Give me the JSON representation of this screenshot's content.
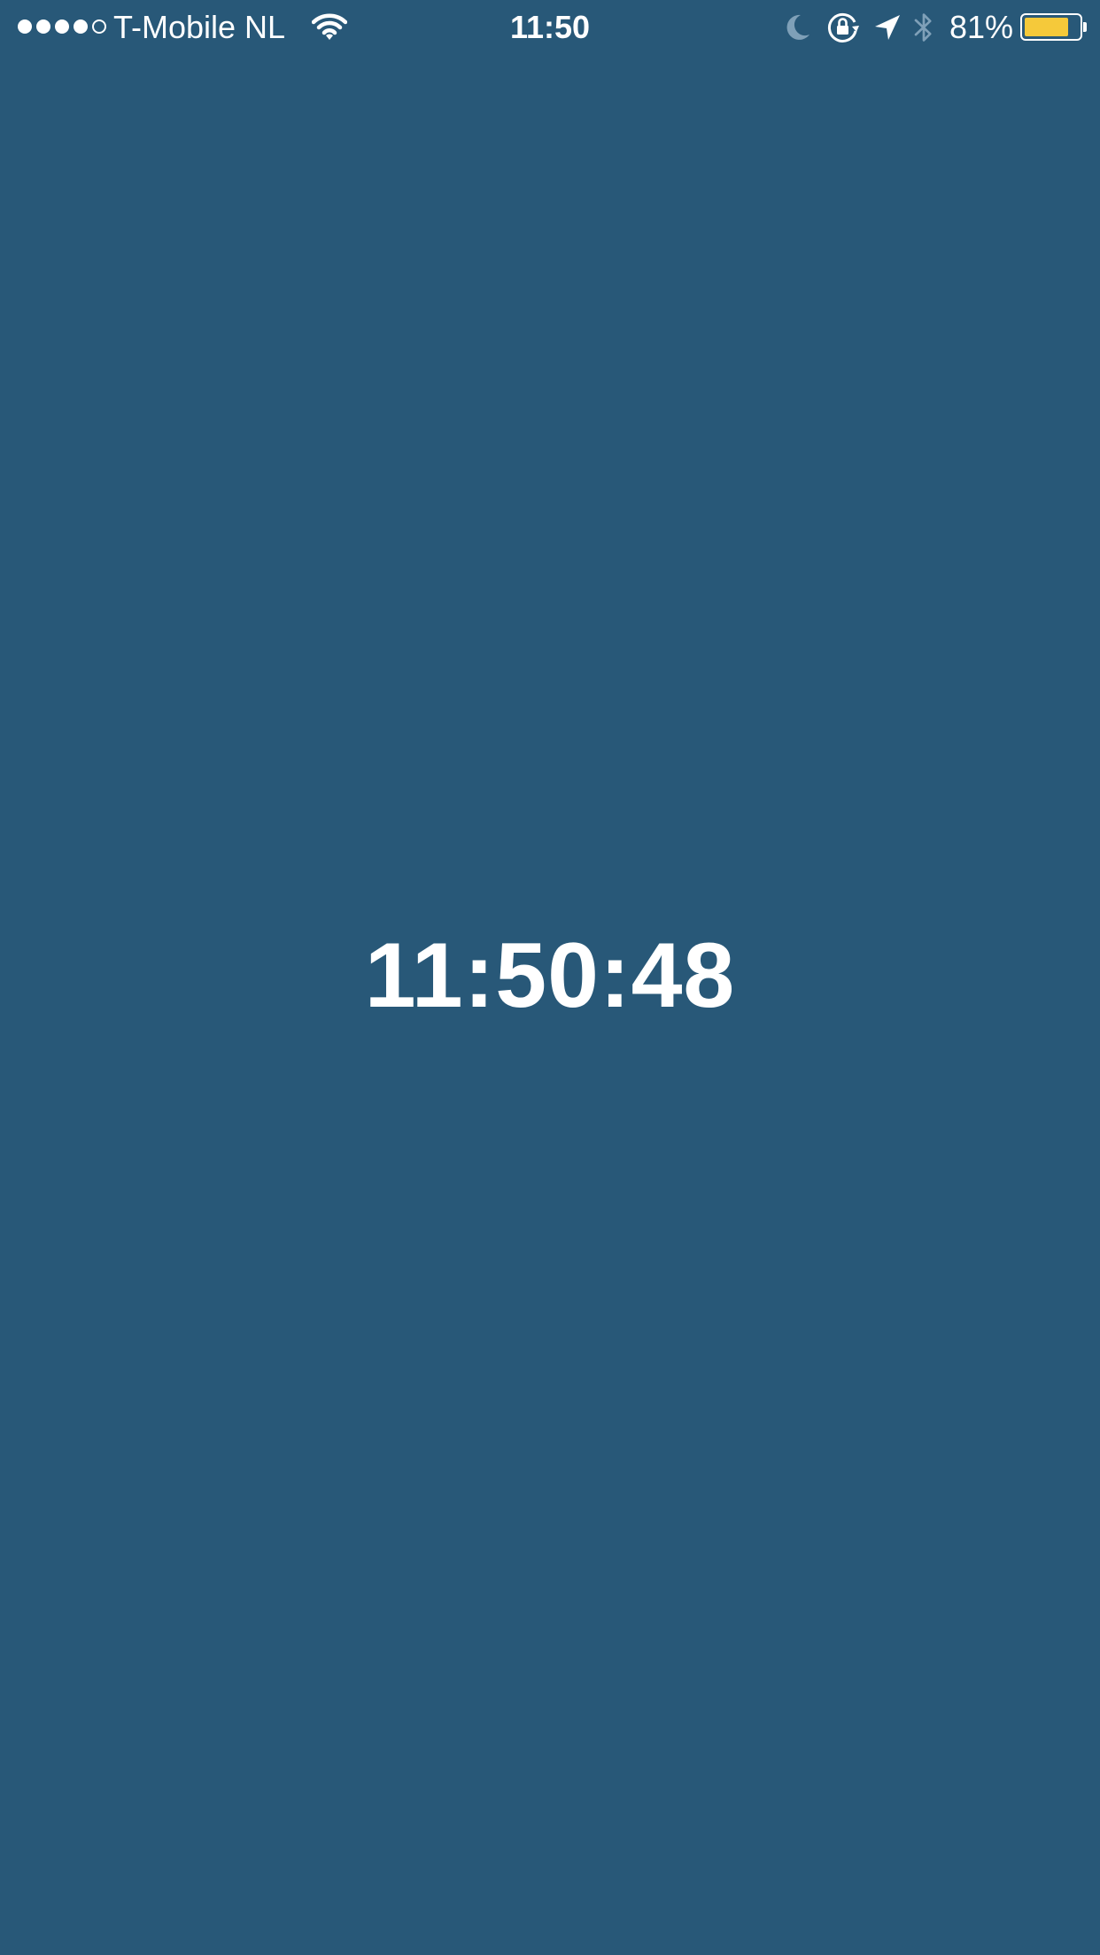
{
  "status_bar": {
    "carrier": "T-Mobile NL",
    "time": "11:50",
    "battery_percent_label": "81%",
    "battery_level": 0.81,
    "battery_color": "#f5c93a",
    "signal_bars_filled": 4,
    "signal_bars_total": 5,
    "icons": [
      "wifi-icon",
      "moon-icon",
      "rotation-lock-icon",
      "location-arrow-icon",
      "bluetooth-icon",
      "battery-icon"
    ]
  },
  "main": {
    "timer_display": "11:50:48"
  },
  "colors": {
    "background": "#285878",
    "text": "#ffffff",
    "dim_icon": "#7fa0b8"
  }
}
